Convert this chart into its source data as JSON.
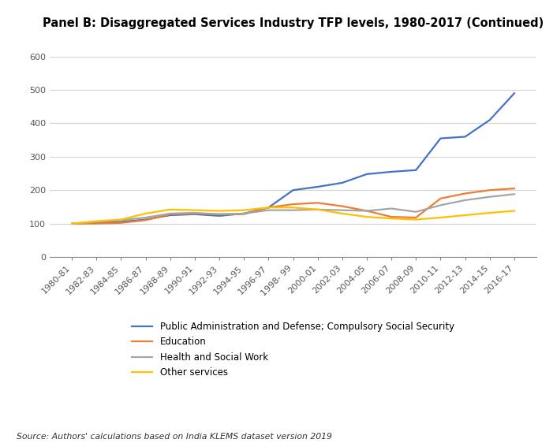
{
  "title": "Panel B: Disaggregated Services Industry TFP levels, 1980-2017 (Continued)",
  "source": "Source: Authors' calculations based on India KLEMS dataset version 2019",
  "x_labels": [
    "1980-81",
    "1982-83",
    "1984-85",
    "1986-87",
    "1988-89",
    "1990-91",
    "1992-93",
    "1994-95",
    "1996-97",
    "1998- 99",
    "2000-01",
    "2002-03",
    "2004-05",
    "2006-07",
    "2008-09",
    "2010-11",
    "2012-13",
    "2014-15",
    "2016-17"
  ],
  "ylim": [
    0,
    650
  ],
  "yticks": [
    0,
    100,
    200,
    300,
    400,
    500,
    600
  ],
  "series": [
    {
      "label": "Public Administration and Defense; Compulsory Social Security",
      "color": "#4472C4",
      "values": [
        100,
        103,
        105,
        112,
        125,
        128,
        123,
        130,
        148,
        200,
        210,
        222,
        248,
        255,
        260,
        355,
        360,
        410,
        490
      ]
    },
    {
      "label": "Education",
      "color": "#ED7D31",
      "values": [
        100,
        100,
        102,
        110,
        128,
        130,
        128,
        128,
        148,
        158,
        162,
        152,
        138,
        120,
        118,
        175,
        190,
        200,
        205
      ]
    },
    {
      "label": "Health and Social Work",
      "color": "#A5A5A5",
      "values": [
        100,
        105,
        110,
        118,
        130,
        132,
        128,
        130,
        140,
        140,
        142,
        140,
        138,
        145,
        135,
        155,
        170,
        180,
        188
      ]
    },
    {
      "label": "Other services",
      "color": "#FFC000",
      "values": [
        100,
        107,
        112,
        130,
        142,
        140,
        138,
        140,
        148,
        148,
        142,
        130,
        120,
        115,
        112,
        118,
        125,
        132,
        138
      ]
    }
  ],
  "background_color": "#FFFFFF",
  "plot_bg_color": "#FFFFFF",
  "grid_color": "#D3D3D3",
  "border_color": "#000000",
  "title_fontsize": 10.5,
  "axis_fontsize": 8,
  "legend_fontsize": 8.5,
  "line_width": 1.6
}
